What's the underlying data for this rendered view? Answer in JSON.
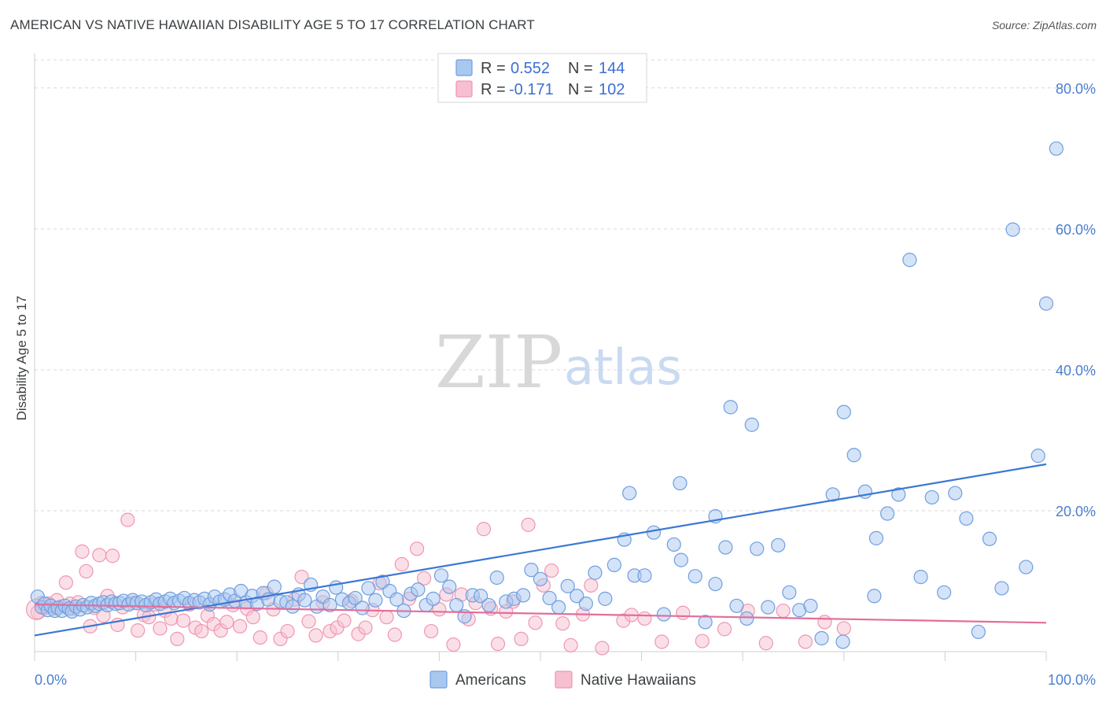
{
  "title": "AMERICAN VS NATIVE HAWAIIAN DISABILITY AGE 5 TO 17 CORRELATION CHART",
  "source": "Source: ZipAtlas.com",
  "watermark": {
    "zip": "ZIP",
    "atlas": "atlas"
  },
  "colors": {
    "americans_fill": "#a9c8f0",
    "americans_stroke": "#6f9fe0",
    "americans_line": "#3a78d4",
    "hawaiians_fill": "#f7bfd0",
    "hawaiians_stroke": "#ee97b3",
    "hawaiians_line": "#e26e9b",
    "grid": "#d9d9d9",
    "tick_text": "#4a7fd0"
  },
  "legend": {
    "rows": [
      {
        "r_label": "R =",
        "r_value": "0.552",
        "n_label": "N =",
        "n_value": "144"
      },
      {
        "r_label": "R =",
        "r_value": "-0.171",
        "n_label": "N =",
        "n_value": "102"
      }
    ]
  },
  "chart_data": {
    "type": "scatter",
    "title": "AMERICAN VS NATIVE HAWAIIAN DISABILITY AGE 5 TO 17 CORRELATION CHART",
    "xlabel": "",
    "ylabel": "Disability Age 5 to 17",
    "xlim": [
      0,
      100
    ],
    "ylim": [
      0,
      84
    ],
    "x_tick_labels": [
      "0.0%",
      "100.0%"
    ],
    "y_ticks": [
      20,
      40,
      60,
      80
    ],
    "y_tick_labels": [
      "20.0%",
      "40.0%",
      "60.0%",
      "80.0%"
    ],
    "grid": true,
    "legend_position": "bottom-center",
    "series": [
      {
        "name": "Americans",
        "r": 0.552,
        "n": 144,
        "trend": {
          "x": [
            0,
            100
          ],
          "y": [
            2.3,
            26.6
          ]
        },
        "points": [
          [
            0.3,
            7.8
          ],
          [
            0.7,
            6.3
          ],
          [
            1.0,
            6.8
          ],
          [
            1.3,
            5.9
          ],
          [
            1.6,
            6.5
          ],
          [
            2.0,
            5.8
          ],
          [
            2.3,
            6.2
          ],
          [
            2.7,
            5.8
          ],
          [
            3.0,
            6.5
          ],
          [
            3.4,
            6.1
          ],
          [
            3.7,
            5.7
          ],
          [
            4.1,
            6.4
          ],
          [
            4.5,
            6.0
          ],
          [
            4.8,
            6.6
          ],
          [
            5.2,
            6.3
          ],
          [
            5.6,
            6.9
          ],
          [
            6.0,
            6.5
          ],
          [
            6.4,
            6.8
          ],
          [
            6.8,
            7.0
          ],
          [
            7.2,
            6.6
          ],
          [
            7.6,
            7.1
          ],
          [
            8.0,
            6.8
          ],
          [
            8.4,
            6.9
          ],
          [
            8.8,
            7.2
          ],
          [
            9.3,
            6.7
          ],
          [
            9.7,
            7.3
          ],
          [
            10.1,
            6.9
          ],
          [
            10.6,
            7.1
          ],
          [
            11.0,
            6.6
          ],
          [
            11.5,
            7.0
          ],
          [
            12.0,
            7.4
          ],
          [
            12.4,
            6.8
          ],
          [
            12.9,
            7.1
          ],
          [
            13.4,
            7.5
          ],
          [
            13.8,
            6.9
          ],
          [
            14.3,
            7.2
          ],
          [
            14.8,
            7.6
          ],
          [
            15.3,
            6.9
          ],
          [
            15.8,
            7.3
          ],
          [
            16.3,
            7.0
          ],
          [
            16.8,
            7.5
          ],
          [
            17.3,
            6.7
          ],
          [
            17.8,
            7.8
          ],
          [
            18.3,
            7.1
          ],
          [
            18.8,
            7.4
          ],
          [
            19.3,
            8.1
          ],
          [
            19.8,
            7.2
          ],
          [
            20.4,
            8.6
          ],
          [
            20.9,
            7.0
          ],
          [
            21.5,
            7.9
          ],
          [
            22.0,
            6.8
          ],
          [
            22.6,
            8.3
          ],
          [
            23.1,
            7.4
          ],
          [
            23.7,
            9.2
          ],
          [
            24.3,
            7.1
          ],
          [
            24.9,
            7.0
          ],
          [
            25.5,
            6.4
          ],
          [
            26.1,
            8.1
          ],
          [
            26.7,
            7.3
          ],
          [
            27.3,
            9.5
          ],
          [
            27.9,
            6.4
          ],
          [
            28.5,
            7.8
          ],
          [
            29.2,
            6.6
          ],
          [
            29.8,
            9.1
          ],
          [
            30.4,
            7.4
          ],
          [
            31.1,
            6.9
          ],
          [
            31.7,
            7.6
          ],
          [
            32.4,
            6.2
          ],
          [
            33.0,
            9.0
          ],
          [
            33.7,
            7.3
          ],
          [
            34.4,
            9.9
          ],
          [
            35.1,
            8.6
          ],
          [
            35.8,
            7.4
          ],
          [
            36.5,
            5.8
          ],
          [
            37.2,
            8.2
          ],
          [
            37.9,
            8.8
          ],
          [
            38.7,
            6.6
          ],
          [
            39.4,
            7.5
          ],
          [
            40.2,
            10.8
          ],
          [
            41.0,
            9.2
          ],
          [
            41.7,
            6.6
          ],
          [
            42.5,
            5.0
          ],
          [
            43.3,
            8.0
          ],
          [
            44.1,
            7.9
          ],
          [
            44.9,
            6.6
          ],
          [
            45.7,
            10.5
          ],
          [
            46.6,
            7.1
          ],
          [
            47.4,
            7.5
          ],
          [
            48.3,
            8.0
          ],
          [
            49.1,
            11.6
          ],
          [
            50.0,
            10.3
          ],
          [
            50.9,
            7.6
          ],
          [
            51.8,
            6.3
          ],
          [
            52.7,
            9.3
          ],
          [
            53.6,
            7.9
          ],
          [
            54.5,
            6.8
          ],
          [
            55.4,
            11.2
          ],
          [
            56.4,
            7.5
          ],
          [
            57.3,
            12.3
          ],
          [
            58.3,
            15.9
          ],
          [
            58.8,
            22.5
          ],
          [
            59.3,
            10.8
          ],
          [
            60.3,
            10.8
          ],
          [
            61.2,
            16.9
          ],
          [
            62.2,
            5.3
          ],
          [
            63.2,
            15.2
          ],
          [
            63.8,
            23.9
          ],
          [
            63.9,
            13.0
          ],
          [
            65.3,
            10.7
          ],
          [
            66.3,
            4.2
          ],
          [
            67.3,
            9.6
          ],
          [
            67.3,
            19.2
          ],
          [
            68.3,
            14.8
          ],
          [
            68.8,
            34.7
          ],
          [
            69.4,
            6.5
          ],
          [
            70.4,
            4.7
          ],
          [
            70.9,
            32.2
          ],
          [
            71.4,
            14.6
          ],
          [
            72.5,
            6.3
          ],
          [
            73.5,
            15.1
          ],
          [
            74.6,
            8.4
          ],
          [
            75.6,
            5.9
          ],
          [
            76.7,
            6.5
          ],
          [
            77.8,
            1.9
          ],
          [
            78.9,
            22.3
          ],
          [
            79.9,
            1.4
          ],
          [
            80.0,
            34.0
          ],
          [
            81.0,
            27.9
          ],
          [
            82.1,
            22.7
          ],
          [
            83.0,
            7.9
          ],
          [
            83.2,
            16.1
          ],
          [
            84.3,
            19.6
          ],
          [
            85.4,
            22.3
          ],
          [
            86.5,
            55.6
          ],
          [
            87.6,
            10.6
          ],
          [
            88.7,
            21.9
          ],
          [
            89.9,
            8.4
          ],
          [
            91.0,
            22.5
          ],
          [
            92.1,
            18.9
          ],
          [
            93.3,
            2.8
          ],
          [
            94.4,
            16.0
          ],
          [
            95.6,
            9.0
          ],
          [
            96.7,
            59.9
          ],
          [
            98.0,
            12.0
          ],
          [
            99.2,
            27.8
          ],
          [
            100.0,
            49.4
          ],
          [
            101.0,
            71.4
          ]
        ]
      },
      {
        "name": "Native Hawaiians",
        "r": -0.171,
        "n": 102,
        "trend": {
          "x": [
            0,
            100
          ],
          "y": [
            6.7,
            4.1
          ]
        },
        "points": [
          [
            0.3,
            5.6
          ],
          [
            0.7,
            6.9
          ],
          [
            1.0,
            6.2
          ],
          [
            1.4,
            6.8
          ],
          [
            1.8,
            6.1
          ],
          [
            2.2,
            7.3
          ],
          [
            2.6,
            6.4
          ],
          [
            3.1,
            9.8
          ],
          [
            3.5,
            6.8
          ],
          [
            3.9,
            6.1
          ],
          [
            4.3,
            7.0
          ],
          [
            4.7,
            14.2
          ],
          [
            5.1,
            11.4
          ],
          [
            5.5,
            3.6
          ],
          [
            5.9,
            6.2
          ],
          [
            6.4,
            13.7
          ],
          [
            6.8,
            5.1
          ],
          [
            7.2,
            7.9
          ],
          [
            7.7,
            13.6
          ],
          [
            8.2,
            3.8
          ],
          [
            8.7,
            6.3
          ],
          [
            9.2,
            18.7
          ],
          [
            9.7,
            6.9
          ],
          [
            10.2,
            3.0
          ],
          [
            10.8,
            5.2
          ],
          [
            11.3,
            4.9
          ],
          [
            11.9,
            6.7
          ],
          [
            12.4,
            3.3
          ],
          [
            12.9,
            5.8
          ],
          [
            13.5,
            4.7
          ],
          [
            14.1,
            1.8
          ],
          [
            14.7,
            4.4
          ],
          [
            15.3,
            6.7
          ],
          [
            15.9,
            3.4
          ],
          [
            16.5,
            2.9
          ],
          [
            17.1,
            5.1
          ],
          [
            17.7,
            3.9
          ],
          [
            18.4,
            3.0
          ],
          [
            19.0,
            4.2
          ],
          [
            19.6,
            6.6
          ],
          [
            20.3,
            3.6
          ],
          [
            21.0,
            6.1
          ],
          [
            21.6,
            4.9
          ],
          [
            22.3,
            2.0
          ],
          [
            22.9,
            8.3
          ],
          [
            23.6,
            6.0
          ],
          [
            24.3,
            1.8
          ],
          [
            25.0,
            2.9
          ],
          [
            25.7,
            7.4
          ],
          [
            26.4,
            10.6
          ],
          [
            27.1,
            4.3
          ],
          [
            27.8,
            2.3
          ],
          [
            28.5,
            7.0
          ],
          [
            29.2,
            2.9
          ],
          [
            29.9,
            3.4
          ],
          [
            30.6,
            4.4
          ],
          [
            31.3,
            7.2
          ],
          [
            32.0,
            2.5
          ],
          [
            32.7,
            3.4
          ],
          [
            33.4,
            5.9
          ],
          [
            34.1,
            9.7
          ],
          [
            34.8,
            4.9
          ],
          [
            35.6,
            2.4
          ],
          [
            36.3,
            12.4
          ],
          [
            37.0,
            7.5
          ],
          [
            37.8,
            14.6
          ],
          [
            38.5,
            10.4
          ],
          [
            39.2,
            2.9
          ],
          [
            40.0,
            6.0
          ],
          [
            40.7,
            8.1
          ],
          [
            41.4,
            1.0
          ],
          [
            42.2,
            8.1
          ],
          [
            42.9,
            4.6
          ],
          [
            43.6,
            6.9
          ],
          [
            44.4,
            17.4
          ],
          [
            45.1,
            6.1
          ],
          [
            45.8,
            1.1
          ],
          [
            46.6,
            5.7
          ],
          [
            47.3,
            7.1
          ],
          [
            48.1,
            1.8
          ],
          [
            48.8,
            18.0
          ],
          [
            49.5,
            4.1
          ],
          [
            50.3,
            9.4
          ],
          [
            51.1,
            11.5
          ],
          [
            52.2,
            4.0
          ],
          [
            53.0,
            0.9
          ],
          [
            54.2,
            5.3
          ],
          [
            55.0,
            9.4
          ],
          [
            56.1,
            0.5
          ],
          [
            58.2,
            4.4
          ],
          [
            59.0,
            5.2
          ],
          [
            60.3,
            4.7
          ],
          [
            62.0,
            1.4
          ],
          [
            64.1,
            5.5
          ],
          [
            66.0,
            1.5
          ],
          [
            68.2,
            3.2
          ],
          [
            70.5,
            5.8
          ],
          [
            72.3,
            1.2
          ],
          [
            74.0,
            5.8
          ],
          [
            76.2,
            1.4
          ],
          [
            78.1,
            4.2
          ],
          [
            80.0,
            3.3
          ]
        ]
      }
    ]
  },
  "bottom_legend": {
    "items": [
      {
        "label": "Americans"
      },
      {
        "label": "Native Hawaiians"
      }
    ]
  }
}
